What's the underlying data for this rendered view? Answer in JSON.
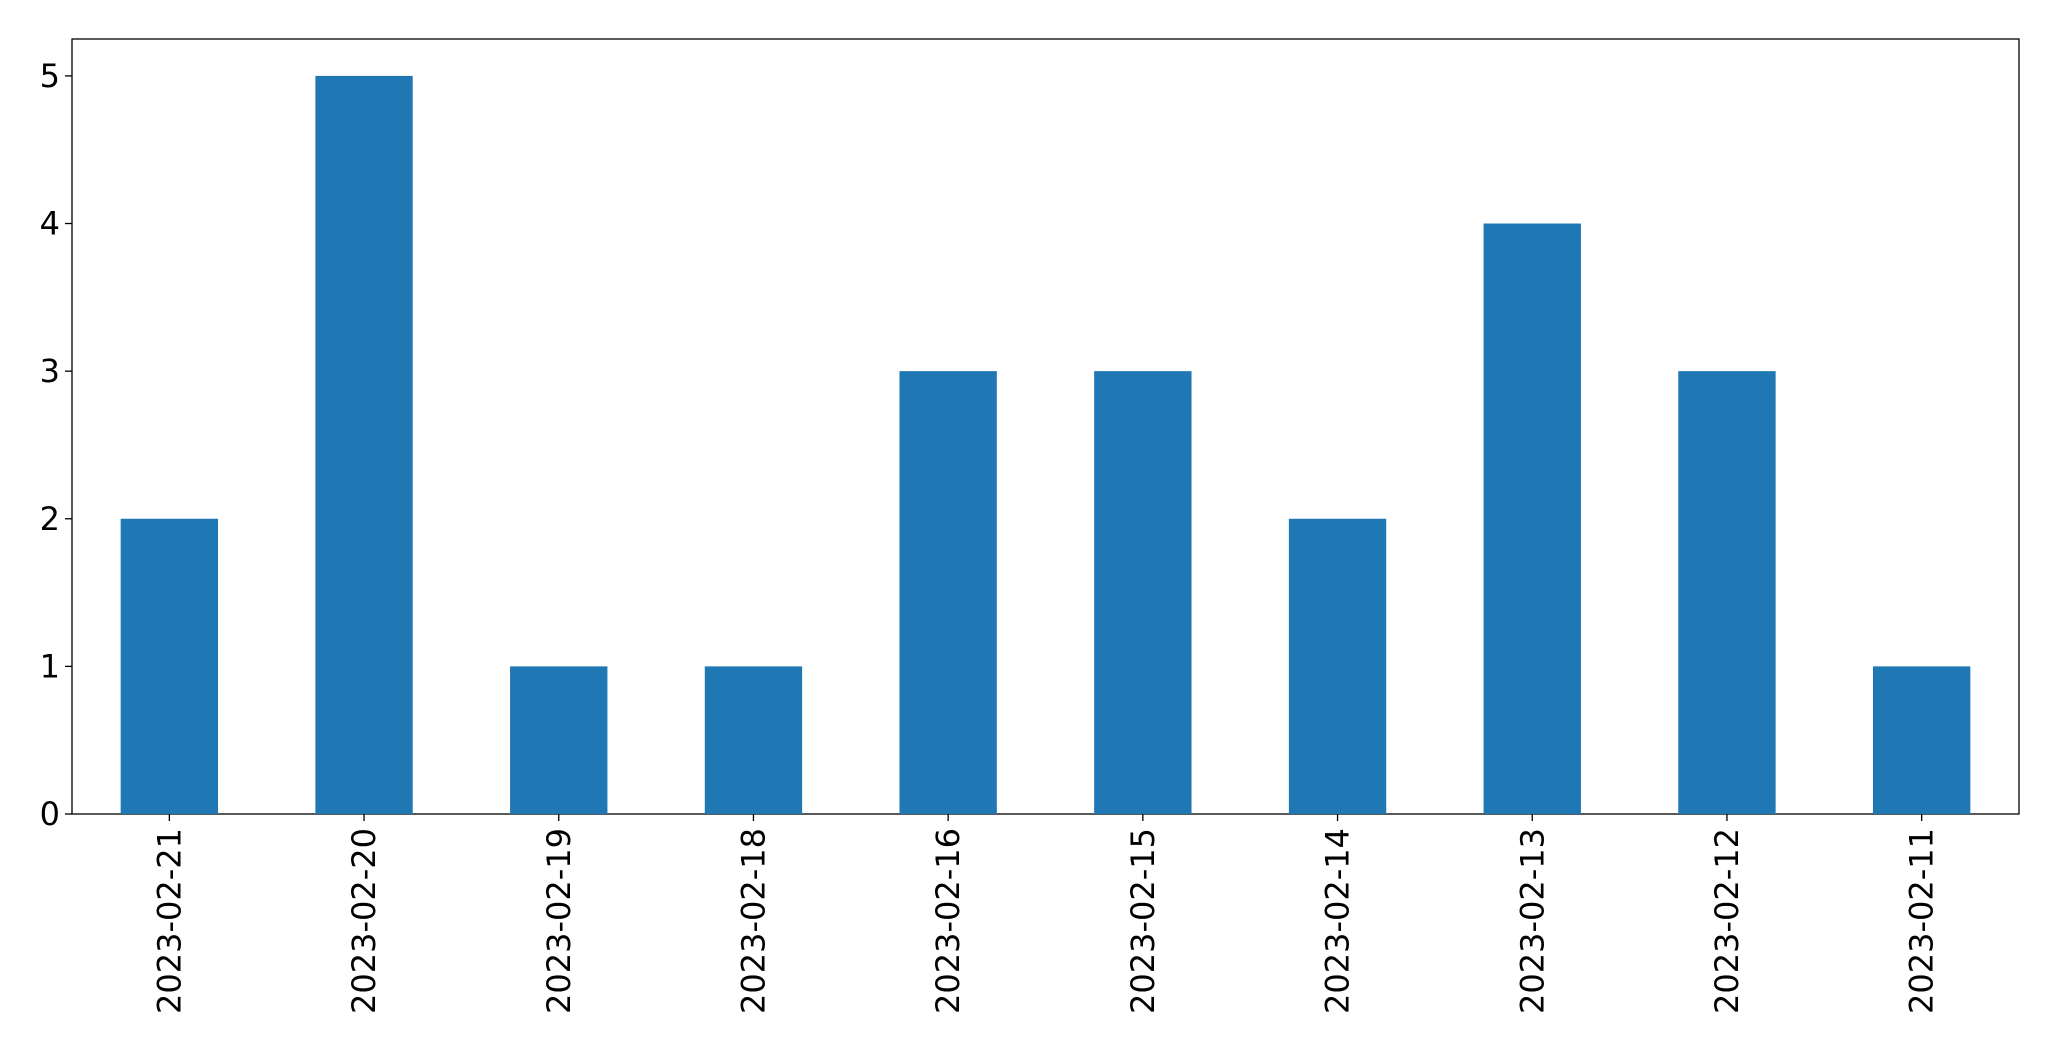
{
  "chart_data": {
    "type": "bar",
    "categories": [
      "2023-02-21",
      "2023-02-20",
      "2023-02-19",
      "2023-02-18",
      "2023-02-16",
      "2023-02-15",
      "2023-02-14",
      "2023-02-13",
      "2023-02-12",
      "2023-02-11"
    ],
    "values": [
      2,
      5,
      1,
      1,
      3,
      3,
      2,
      4,
      3,
      1
    ],
    "color": "#1f77b4",
    "ylim": [
      0,
      5.25
    ],
    "yticks": [
      0,
      1,
      2,
      3,
      4,
      5
    ],
    "grid": false
  }
}
